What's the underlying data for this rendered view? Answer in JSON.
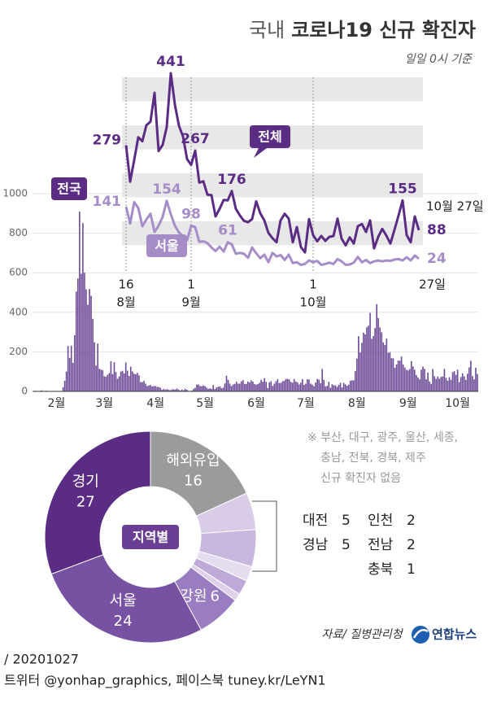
{
  "header": {
    "title_prefix": "국내",
    "title": "코로나19 신규 확진자",
    "subtitle": "일일 0시 기준"
  },
  "chart_data": [
    {
      "type": "bar",
      "annotation": "전국",
      "color": "#6e4c98",
      "ylim": [
        0,
        1000
      ],
      "yticks": [
        0,
        200,
        400,
        600,
        800,
        1000
      ],
      "grid": true,
      "categories": [
        null,
        null,
        null,
        null,
        null,
        null,
        null,
        null,
        null,
        null,
        null,
        null,
        null,
        null,
        "2월",
        null,
        null,
        null,
        null,
        null,
        null,
        null,
        null,
        null,
        null,
        null,
        null,
        null,
        null,
        null,
        null,
        null,
        null,
        null,
        null,
        null,
        null,
        null,
        null,
        null,
        null,
        null,
        null,
        "3월",
        null,
        null,
        null,
        null,
        null,
        null,
        null,
        null,
        null,
        null,
        null,
        null,
        null,
        null,
        null,
        null,
        null,
        null,
        null,
        null,
        null,
        null,
        null,
        null,
        null,
        null,
        null,
        null,
        null,
        null,
        "4월",
        null,
        null,
        null,
        null,
        null,
        null,
        null,
        null,
        null,
        null,
        null,
        null,
        null,
        null,
        null,
        null,
        null,
        null,
        null,
        null,
        null,
        null,
        null,
        null,
        null,
        null,
        null,
        null,
        null,
        "5월",
        null,
        null,
        null,
        null,
        null,
        null,
        null,
        null,
        null,
        null,
        null,
        null,
        null,
        null,
        null,
        null,
        null,
        null,
        null,
        null,
        null,
        null,
        null,
        null,
        null,
        null,
        null,
        null,
        null,
        null,
        "6월",
        null,
        null,
        null,
        null,
        null,
        null,
        null,
        null,
        null,
        null,
        null,
        null,
        null,
        null,
        null,
        null,
        null,
        null,
        null,
        null,
        null,
        null,
        null,
        null,
        null,
        null,
        null,
        null,
        null,
        "7월",
        null,
        null,
        null,
        null,
        null,
        null,
        null,
        null,
        null,
        null,
        null,
        null,
        null,
        null,
        null,
        null,
        null,
        null,
        null,
        null,
        null,
        null,
        null,
        null,
        null,
        null,
        null,
        null,
        null,
        null,
        "8월",
        null,
        null,
        null,
        null,
        null,
        null,
        null,
        null,
        null,
        null,
        null,
        null,
        null,
        null,
        null,
        null,
        null,
        null,
        null,
        null,
        null,
        null,
        null,
        null,
        null,
        null,
        null,
        null,
        null,
        null,
        "9월",
        null,
        null,
        null,
        null,
        null,
        null,
        null,
        null,
        null,
        null,
        null,
        null,
        null,
        null,
        null,
        null,
        null,
        null,
        null,
        null,
        null,
        null,
        null,
        null,
        null,
        null,
        null,
        null,
        null,
        "10월",
        null,
        null,
        null,
        null,
        null,
        null,
        null,
        null,
        null,
        null,
        null,
        null
      ],
      "values": [
        1,
        3,
        0,
        1,
        2,
        5,
        1,
        0,
        3,
        0,
        0,
        0,
        0,
        0,
        0,
        1,
        1,
        1,
        20,
        53,
        100,
        229,
        169,
        231,
        144,
        284,
        505,
        571,
        909,
        595,
        851,
        600,
        516,
        438,
        518,
        483,
        367,
        248,
        131,
        242,
        114,
        110,
        107,
        76,
        74,
        84,
        93,
        152,
        87,
        147,
        98,
        64,
        76,
        100,
        104,
        91,
        146,
        105,
        78,
        125,
        101,
        89,
        86,
        94,
        81,
        47,
        47,
        53,
        39,
        27,
        30,
        32,
        25,
        27,
        27,
        22,
        22,
        18,
        8,
        13,
        9,
        11,
        8,
        6,
        10,
        10,
        10,
        14,
        9,
        4,
        9,
        6,
        13,
        8,
        3,
        2,
        4,
        12,
        18,
        34,
        35,
        27,
        26,
        29,
        27,
        19,
        13,
        15,
        13,
        32,
        12,
        20,
        23,
        25,
        16,
        19,
        40,
        79,
        58,
        39,
        27,
        35,
        38,
        49,
        39,
        39,
        51,
        57,
        38,
        38,
        50,
        45,
        56,
        49,
        37,
        34,
        37,
        43,
        59,
        49,
        67,
        48,
        17,
        46,
        51,
        28,
        39,
        51,
        62,
        42,
        43,
        51,
        54,
        63,
        63,
        61,
        48,
        44,
        63,
        50,
        45,
        35,
        44,
        62,
        33,
        39,
        61,
        60,
        39,
        34,
        26,
        45,
        63,
        59,
        41,
        113,
        58,
        25,
        28,
        48,
        18,
        36,
        31,
        30,
        23,
        33,
        43,
        20,
        43,
        36,
        28,
        34,
        54,
        56,
        56,
        103,
        166,
        279,
        197,
        246,
        297,
        288,
        324,
        332,
        397,
        266,
        280,
        320,
        441,
        371,
        323,
        299,
        248,
        235,
        267,
        195,
        198,
        168,
        167,
        119,
        136,
        156,
        155,
        176,
        136,
        121,
        109,
        106,
        113,
        153,
        126,
        110,
        82,
        70,
        61,
        110,
        125,
        114,
        61,
        95,
        50,
        38,
        113,
        77,
        63,
        75,
        64,
        73,
        75,
        114,
        69,
        54,
        72,
        58,
        97,
        102,
        84,
        110,
        47,
        73,
        91,
        76,
        58,
        89,
        121,
        155,
        77,
        61,
        119,
        88
      ]
    },
    {
      "type": "line",
      "annotation": "10월 27일",
      "categories": [
        "16",
        null,
        null,
        null,
        null,
        null,
        null,
        null,
        null,
        null,
        null,
        null,
        null,
        null,
        null,
        null,
        "1",
        null,
        null,
        null,
        null,
        null,
        null,
        null,
        null,
        null,
        null,
        null,
        null,
        null,
        null,
        null,
        null,
        null,
        null,
        null,
        null,
        null,
        null,
        null,
        null,
        null,
        null,
        null,
        null,
        null,
        "1",
        null,
        null,
        null,
        null,
        null,
        null,
        null,
        null,
        null,
        null,
        null,
        null,
        null,
        null,
        null,
        null,
        null,
        null,
        null,
        null,
        null,
        null,
        null,
        null,
        null,
        "27일"
      ],
      "months": [
        "8월",
        null,
        null,
        null,
        null,
        null,
        null,
        null,
        null,
        null,
        null,
        null,
        null,
        null,
        null,
        null,
        "9월",
        null,
        null,
        null,
        null,
        null,
        null,
        null,
        null,
        null,
        null,
        null,
        null,
        null,
        null,
        null,
        null,
        null,
        null,
        null,
        null,
        null,
        null,
        null,
        null,
        null,
        null,
        null,
        null,
        null,
        "10월",
        null,
        null,
        null,
        null,
        null,
        null,
        null,
        null,
        null,
        null,
        null,
        null,
        null,
        null,
        null,
        null,
        null,
        null,
        null,
        null,
        null,
        null,
        null,
        null,
        null,
        null
      ],
      "series": [
        {
          "name": "전체",
          "color": "#5b2c83",
          "values": [
            279,
            197,
            246,
            297,
            288,
            324,
            332,
            397,
            266,
            280,
            320,
            441,
            371,
            323,
            299,
            248,
            235,
            267,
            195,
            198,
            168,
            167,
            119,
            136,
            156,
            155,
            176,
            136,
            121,
            109,
            106,
            113,
            153,
            126,
            110,
            82,
            70,
            61,
            110,
            125,
            114,
            61,
            95,
            50,
            38,
            113,
            77,
            63,
            75,
            64,
            73,
            75,
            114,
            69,
            54,
            72,
            58,
            97,
            102,
            84,
            110,
            47,
            73,
            91,
            76,
            58,
            89,
            121,
            155,
            77,
            61,
            119,
            88
          ],
          "value_labels": [
            "279",
            null,
            null,
            null,
            null,
            null,
            null,
            null,
            null,
            null,
            null,
            "441",
            null,
            null,
            null,
            null,
            null,
            "267",
            null,
            null,
            null,
            null,
            null,
            null,
            null,
            null,
            "176",
            null,
            null,
            null,
            null,
            null,
            null,
            null,
            null,
            null,
            null,
            null,
            null,
            null,
            null,
            null,
            null,
            null,
            null,
            null,
            null,
            null,
            null,
            null,
            null,
            null,
            null,
            null,
            null,
            null,
            null,
            null,
            null,
            null,
            null,
            null,
            null,
            null,
            null,
            null,
            null,
            null,
            "155",
            null,
            null,
            null,
            "88"
          ]
        },
        {
          "name": "서울",
          "color": "#a68dc8",
          "values": [
            141,
            103,
            151,
            138,
            97,
            112,
            125,
            84,
            98,
            118,
            154,
            124,
            98,
            83,
            74,
            65,
            98,
            95,
            62,
            63,
            59,
            49,
            41,
            51,
            40,
            61,
            56,
            35,
            37,
            35,
            26,
            49,
            36,
            25,
            33,
            16,
            37,
            29,
            32,
            21,
            33,
            14,
            16,
            10,
            12,
            20,
            16,
            19,
            10,
            12,
            15,
            12,
            23,
            18,
            10,
            11,
            15,
            28,
            16,
            21,
            14,
            18,
            20,
            18,
            20,
            19,
            22,
            23,
            20,
            27,
            20,
            31,
            24
          ],
          "value_labels": [
            "141",
            null,
            null,
            null,
            null,
            null,
            null,
            null,
            null,
            null,
            "154",
            null,
            null,
            null,
            null,
            null,
            "98",
            null,
            null,
            null,
            null,
            null,
            null,
            null,
            null,
            "61",
            null,
            null,
            null,
            null,
            null,
            null,
            null,
            null,
            null,
            null,
            null,
            null,
            null,
            null,
            null,
            null,
            null,
            null,
            null,
            null,
            null,
            null,
            null,
            null,
            null,
            null,
            null,
            null,
            null,
            null,
            null,
            null,
            null,
            null,
            null,
            null,
            null,
            null,
            null,
            null,
            null,
            null,
            null,
            null,
            null,
            null,
            "24"
          ]
        }
      ]
    },
    {
      "type": "pie",
      "title": "지역별",
      "categories": [
        "해외유입",
        "대전",
        "경남",
        "인천",
        "전남",
        "충북",
        "강원",
        "서울",
        "경기"
      ],
      "values": [
        16,
        5,
        5,
        2,
        2,
        1,
        6,
        24,
        27
      ],
      "colors": [
        "#9b9b9b",
        "#d8cce7",
        "#c9b8de",
        "#e5dcef",
        "#bfa9d8",
        "#ddd1ea",
        "#9a7cc0",
        "#7752a2",
        "#5b2c83"
      ]
    }
  ],
  "note_lines": [
    "※ 부산, 대구, 광주, 울산, 세종,",
    "충남, 전북, 경북, 제주",
    "신규 확진자 없음"
  ],
  "source": "자료/ 질병관리청",
  "logo": "연합뉴스",
  "footer": {
    "date": "/ 20201027",
    "social": "트위터 @yonhap_graphics, 페이스북 tuney.kr/LeYN1"
  }
}
